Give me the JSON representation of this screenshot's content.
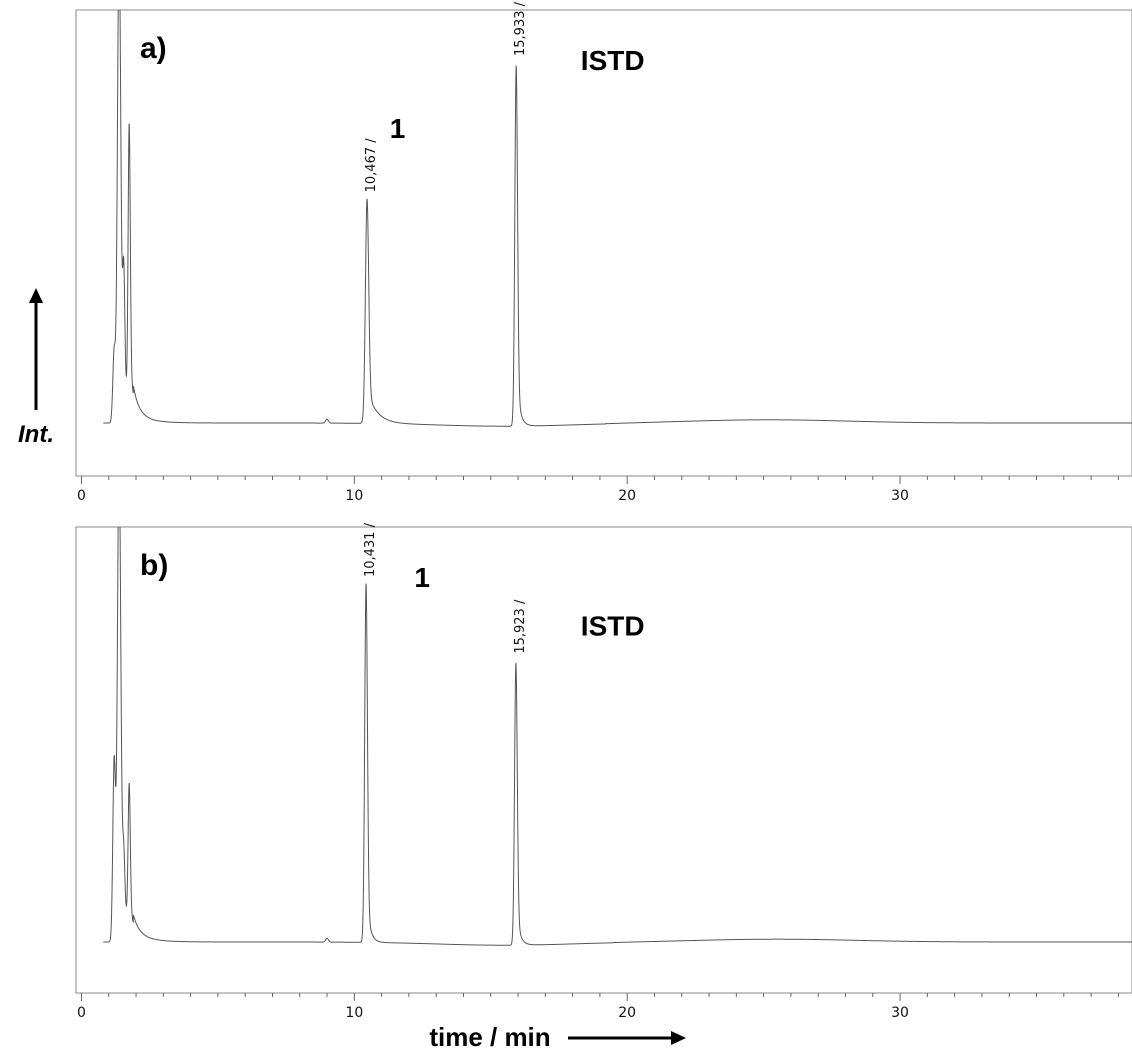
{
  "y_axis_label": "Int.",
  "x_axis_label": "time / min",
  "chart_data": [
    {
      "type": "line",
      "panel_label": "a)",
      "xlim": [
        -0.2,
        38.5
      ],
      "ylim": [
        -0.12,
        1.0
      ],
      "x_ticks": [
        0,
        10,
        20,
        30
      ],
      "minor_tick_step": 1,
      "baseline": 0.0,
      "peaks": [
        {
          "rt": 1.2,
          "height": 0.18,
          "width": 0.05,
          "tail": 0.1
        },
        {
          "rt": 1.38,
          "height": 1.2,
          "width": 0.06,
          "tail": 0.25
        },
        {
          "rt": 1.55,
          "height": 0.3,
          "width": 0.04,
          "tail": 0.1
        },
        {
          "rt": 1.75,
          "height": 0.7,
          "width": 0.04,
          "tail": 0.2
        },
        {
          "rt": 9.0,
          "height": 0.01,
          "width": 0.05,
          "tail": 0.05
        },
        {
          "rt": 10.467,
          "height": 0.56,
          "width": 0.06,
          "tail": 0.35
        },
        {
          "rt": 15.933,
          "height": 0.9,
          "width": 0.05,
          "tail": 0.12
        }
      ],
      "hump": {
        "center": 25.2,
        "height": 0.008,
        "width": 4.0
      },
      "annotations": [
        {
          "text": "10,467 /",
          "x": 10.467,
          "y": 0.56
        },
        {
          "text": "15,933 /",
          "x": 15.933,
          "y": 0.9
        }
      ],
      "labels": [
        {
          "text": "1",
          "x": 11.3,
          "y": 0.71
        },
        {
          "text": "ISTD",
          "x": 18.3,
          "y": 0.88
        }
      ]
    },
    {
      "type": "line",
      "panel_label": "b)",
      "xlim": [
        -0.2,
        38.5
      ],
      "ylim": [
        -0.12,
        1.0
      ],
      "x_ticks": [
        0,
        10,
        20,
        30
      ],
      "minor_tick_step": 1,
      "baseline": 0.0,
      "peaks": [
        {
          "rt": 1.2,
          "height": 0.45,
          "width": 0.05,
          "tail": 0.1
        },
        {
          "rt": 1.38,
          "height": 1.2,
          "width": 0.06,
          "tail": 0.25
        },
        {
          "rt": 1.55,
          "height": 0.14,
          "width": 0.04,
          "tail": 0.1
        },
        {
          "rt": 1.75,
          "height": 0.35,
          "width": 0.04,
          "tail": 0.2
        },
        {
          "rt": 9.0,
          "height": 0.01,
          "width": 0.05,
          "tail": 0.05
        },
        {
          "rt": 10.431,
          "height": 0.89,
          "width": 0.05,
          "tail": 0.12
        },
        {
          "rt": 15.923,
          "height": 0.7,
          "width": 0.05,
          "tail": 0.12
        }
      ],
      "hump": {
        "center": 25.5,
        "height": 0.007,
        "width": 4.0
      },
      "annotations": [
        {
          "text": "10,431 /",
          "x": 10.431,
          "y": 0.89
        },
        {
          "text": "15,923 /",
          "x": 15.923,
          "y": 0.7
        }
      ],
      "labels": [
        {
          "text": "1",
          "x": 12.2,
          "y": 0.88
        },
        {
          "text": "ISTD",
          "x": 18.3,
          "y": 0.76
        }
      ]
    }
  ]
}
